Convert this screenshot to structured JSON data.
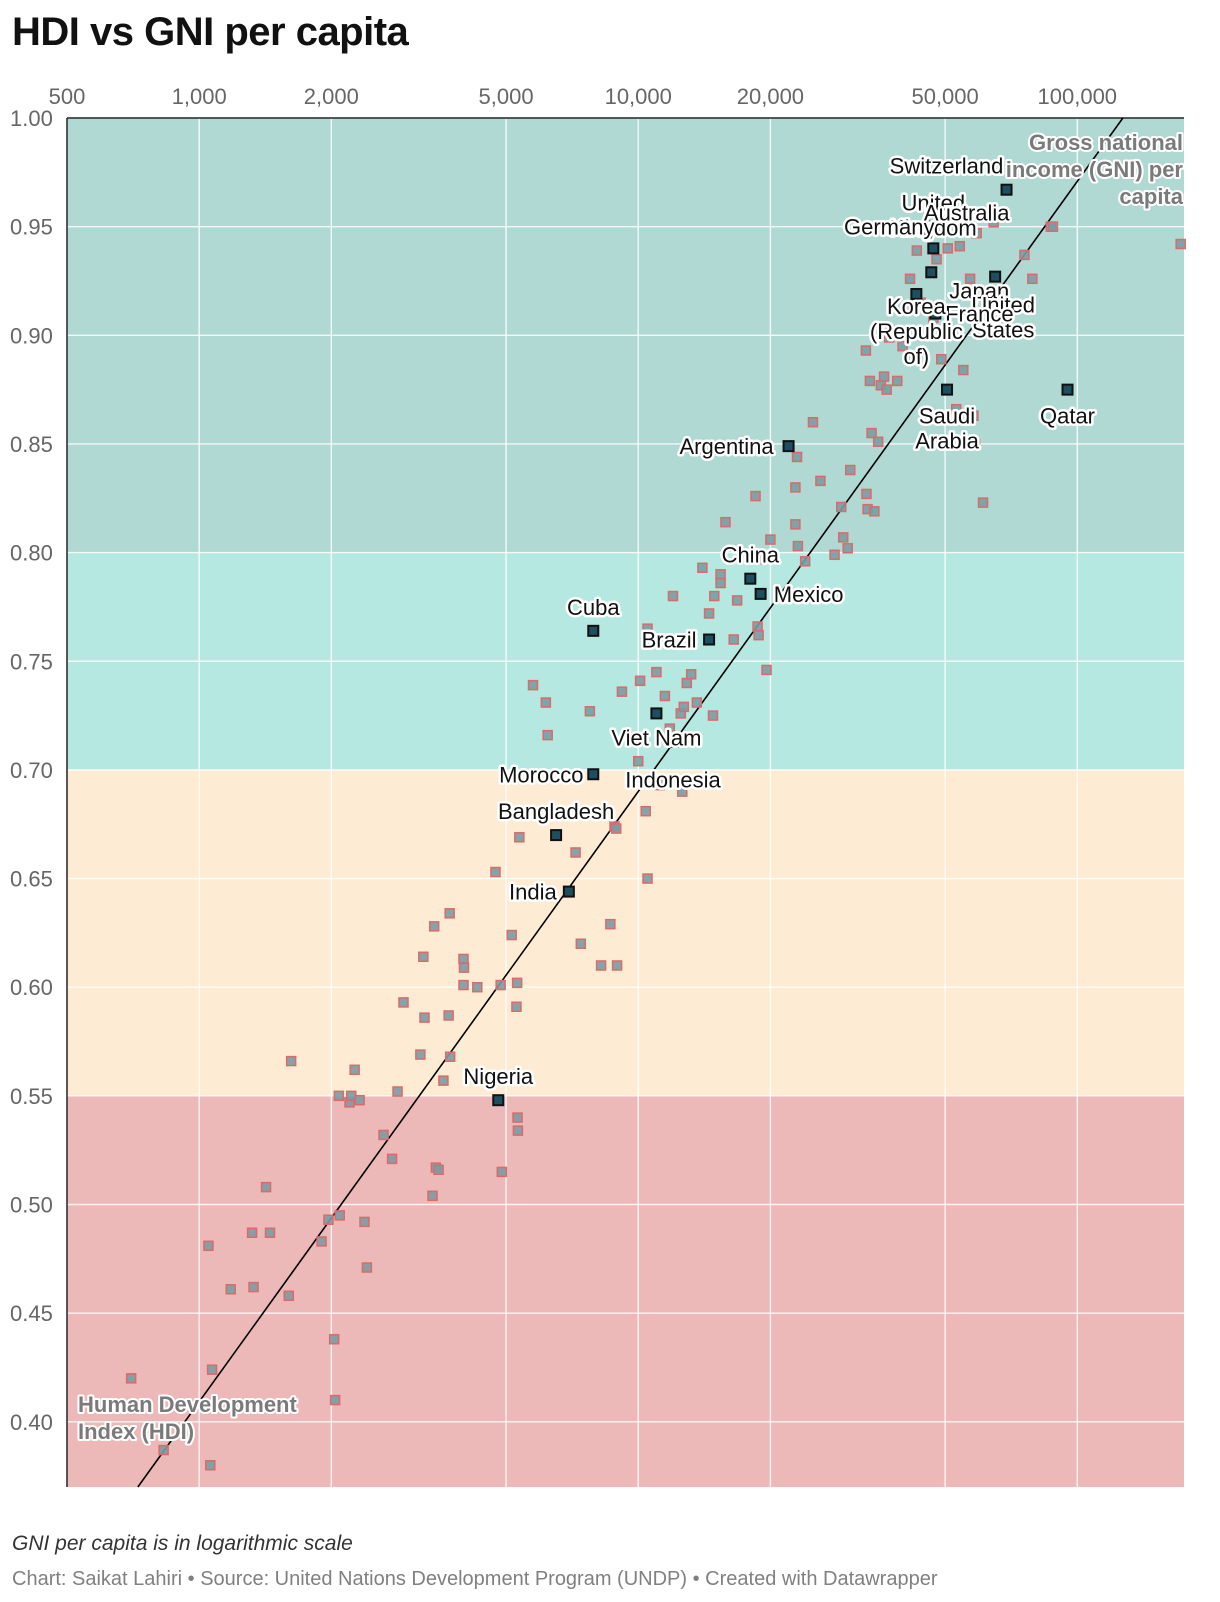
{
  "title": "HDI vs GNI per capita",
  "notes": "GNI per capita is in logarithmic scale",
  "credit": "Chart: Saikat Lahiri • Source: United Nations Development Program (UNDP) • Created with Datawrapper",
  "chart_data": {
    "type": "scatter",
    "title": "HDI vs GNI per capita",
    "xlabel": "Gross national income (GNI) per capita",
    "ylabel": "Human Development Index (HDI)",
    "x_scale": "log",
    "xlim": [
      500,
      175000
    ],
    "ylim": [
      0.37,
      1.0
    ],
    "x_ticks": [
      500,
      1000,
      2000,
      5000,
      10000,
      20000,
      50000,
      100000
    ],
    "x_tick_labels": [
      "500",
      "1,000",
      "2,000",
      "5,000",
      "10,000",
      "20,000",
      "50,000",
      "100,000"
    ],
    "y_ticks": [
      0.4,
      0.45,
      0.5,
      0.55,
      0.6,
      0.65,
      0.7,
      0.75,
      0.8,
      0.85,
      0.9,
      0.95,
      1.0
    ],
    "y_tick_labels": [
      "0.40",
      "0.45",
      "0.50",
      "0.55",
      "0.60",
      "0.65",
      "0.70",
      "0.75",
      "0.80",
      "0.85",
      "0.90",
      "0.95",
      "1.00"
    ],
    "grid": true,
    "bands": [
      {
        "from": 0.8,
        "to": 1.0,
        "color": "#b0d9d3"
      },
      {
        "from": 0.7,
        "to": 0.8,
        "color": "#b5e8e0"
      },
      {
        "from": 0.55,
        "to": 0.7,
        "color": "#fdecd3"
      },
      {
        "from": 0.37,
        "to": 0.55,
        "color": "#edb8b8"
      }
    ],
    "trendline": {
      "x": [
        725,
        127000
      ],
      "y": [
        0.37,
        1.0
      ]
    },
    "colors": {
      "point_fill": "#7b9ba3",
      "point_stroke": "#d96b6b",
      "highlight_fill": "#1d4f60",
      "highlight_stroke": "#111111",
      "trendline": "#000000"
    },
    "highlighted": [
      {
        "name": "Switzerland",
        "x": 69000,
        "y": 0.967
      },
      {
        "name": "United Kingdom",
        "x": 47000,
        "y": 0.94
      },
      {
        "name": "Germany",
        "x": 46000,
        "y": 0.95
      },
      {
        "name": "Australia",
        "x": 56000,
        "y": 0.951
      },
      {
        "name": "Japan",
        "x": 46500,
        "y": 0.929
      },
      {
        "name": "United States",
        "x": 65000,
        "y": 0.927
      },
      {
        "name": "France",
        "x": 47500,
        "y": 0.91
      },
      {
        "name": "Korea (Republic of)",
        "x": 43000,
        "y": 0.919
      },
      {
        "name": "Saudi Arabia",
        "x": 50500,
        "y": 0.875
      },
      {
        "name": "Qatar",
        "x": 95000,
        "y": 0.875
      },
      {
        "name": "Argentina",
        "x": 22000,
        "y": 0.849
      },
      {
        "name": "China",
        "x": 18000,
        "y": 0.788
      },
      {
        "name": "Mexico",
        "x": 19000,
        "y": 0.781
      },
      {
        "name": "Cuba",
        "x": 7900,
        "y": 0.764
      },
      {
        "name": "Brazil",
        "x": 14500,
        "y": 0.76
      },
      {
        "name": "Viet Nam",
        "x": 11000,
        "y": 0.726
      },
      {
        "name": "Indonesia",
        "x": 12000,
        "y": 0.713
      },
      {
        "name": "Morocco",
        "x": 7900,
        "y": 0.698
      },
      {
        "name": "Bangladesh",
        "x": 6500,
        "y": 0.67
      },
      {
        "name": "India",
        "x": 6950,
        "y": 0.644
      },
      {
        "name": "Nigeria",
        "x": 4800,
        "y": 0.548
      }
    ],
    "points": [
      [
        700,
        0.42
      ],
      [
        1070,
        0.424
      ],
      [
        1050,
        0.481
      ],
      [
        1060,
        0.38
      ],
      [
        830,
        0.387
      ],
      [
        1180,
        0.461
      ],
      [
        1330,
        0.462
      ],
      [
        1320,
        0.487
      ],
      [
        1450,
        0.487
      ],
      [
        1420,
        0.508
      ],
      [
        1600,
        0.458
      ],
      [
        1620,
        0.566
      ],
      [
        1900,
        0.483
      ],
      [
        1970,
        0.493
      ],
      [
        2030,
        0.438
      ],
      [
        2040,
        0.41
      ],
      [
        2090,
        0.495
      ],
      [
        2080,
        0.55
      ],
      [
        2200,
        0.547
      ],
      [
        2220,
        0.55
      ],
      [
        2260,
        0.562
      ],
      [
        2320,
        0.548
      ],
      [
        2380,
        0.492
      ],
      [
        2410,
        0.471
      ],
      [
        2630,
        0.532
      ],
      [
        2750,
        0.521
      ],
      [
        2830,
        0.552
      ],
      [
        2920,
        0.593
      ],
      [
        3190,
        0.569
      ],
      [
        3240,
        0.614
      ],
      [
        3260,
        0.586
      ],
      [
        3400,
        0.504
      ],
      [
        3430,
        0.628
      ],
      [
        3460,
        0.517
      ],
      [
        3510,
        0.516
      ],
      [
        3600,
        0.557
      ],
      [
        3700,
        0.587
      ],
      [
        3730,
        0.568
      ],
      [
        3720,
        0.634
      ],
      [
        4000,
        0.613
      ],
      [
        4000,
        0.601
      ],
      [
        4010,
        0.609
      ],
      [
        4300,
        0.6
      ],
      [
        4730,
        0.653
      ],
      [
        4860,
        0.601
      ],
      [
        4890,
        0.515
      ],
      [
        5150,
        0.624
      ],
      [
        5280,
        0.591
      ],
      [
        5300,
        0.602
      ],
      [
        5310,
        0.54
      ],
      [
        5320,
        0.534
      ],
      [
        5360,
        0.669
      ],
      [
        5760,
        0.739
      ],
      [
        6160,
        0.731
      ],
      [
        6220,
        0.716
      ],
      [
        7200,
        0.662
      ],
      [
        7400,
        0.62
      ],
      [
        7760,
        0.727
      ],
      [
        8230,
        0.61
      ],
      [
        8640,
        0.629
      ],
      [
        8830,
        0.674
      ],
      [
        8910,
        0.673
      ],
      [
        8950,
        0.61
      ],
      [
        9180,
        0.736
      ],
      [
        9400,
        0.716
      ],
      [
        10000,
        0.704
      ],
      [
        10100,
        0.741
      ],
      [
        10500,
        0.765
      ],
      [
        10400,
        0.681
      ],
      [
        10500,
        0.65
      ],
      [
        11000,
        0.745
      ],
      [
        11200,
        0.693
      ],
      [
        11500,
        0.734
      ],
      [
        11800,
        0.719
      ],
      [
        12000,
        0.78
      ],
      [
        12500,
        0.726
      ],
      [
        12700,
        0.729
      ],
      [
        12600,
        0.69
      ],
      [
        12900,
        0.74
      ],
      [
        13200,
        0.744
      ],
      [
        13600,
        0.731
      ],
      [
        14000,
        0.793
      ],
      [
        14500,
        0.772
      ],
      [
        14700,
        0.695
      ],
      [
        14800,
        0.725
      ],
      [
        14900,
        0.78
      ],
      [
        15400,
        0.79
      ],
      [
        15400,
        0.786
      ],
      [
        15800,
        0.814
      ],
      [
        16500,
        0.76
      ],
      [
        16800,
        0.778
      ],
      [
        18500,
        0.826
      ],
      [
        18700,
        0.766
      ],
      [
        18800,
        0.762
      ],
      [
        19000,
        0.797
      ],
      [
        19600,
        0.746
      ],
      [
        20000,
        0.806
      ],
      [
        22800,
        0.83
      ],
      [
        22800,
        0.813
      ],
      [
        23100,
        0.803
      ],
      [
        23000,
        0.844
      ],
      [
        24000,
        0.796
      ],
      [
        25000,
        0.86
      ],
      [
        26000,
        0.833
      ],
      [
        28000,
        0.799
      ],
      [
        29000,
        0.821
      ],
      [
        29300,
        0.807
      ],
      [
        30000,
        0.802
      ],
      [
        30400,
        0.838
      ],
      [
        33000,
        0.893
      ],
      [
        33100,
        0.827
      ],
      [
        33300,
        0.82
      ],
      [
        33700,
        0.879
      ],
      [
        34000,
        0.855
      ],
      [
        34500,
        0.819
      ],
      [
        35200,
        0.851
      ],
      [
        35700,
        0.877
      ],
      [
        36300,
        0.881
      ],
      [
        36800,
        0.875
      ],
      [
        37300,
        0.899
      ],
      [
        37600,
        0.902
      ],
      [
        38900,
        0.879
      ],
      [
        40000,
        0.895
      ],
      [
        41600,
        0.926
      ],
      [
        42300,
        0.913
      ],
      [
        43100,
        0.939
      ],
      [
        44000,
        0.915
      ],
      [
        47000,
        0.908
      ],
      [
        47800,
        0.935
      ],
      [
        49000,
        0.889
      ],
      [
        50700,
        0.94
      ],
      [
        53000,
        0.866
      ],
      [
        54000,
        0.941
      ],
      [
        55000,
        0.884
      ],
      [
        57000,
        0.926
      ],
      [
        58000,
        0.863
      ],
      [
        58500,
        0.85
      ],
      [
        59000,
        0.947
      ],
      [
        61000,
        0.823
      ],
      [
        64500,
        0.952
      ],
      [
        75800,
        0.937
      ],
      [
        79000,
        0.926
      ],
      [
        87000,
        0.95
      ],
      [
        88000,
        0.95
      ],
      [
        172000,
        0.942
      ]
    ]
  }
}
